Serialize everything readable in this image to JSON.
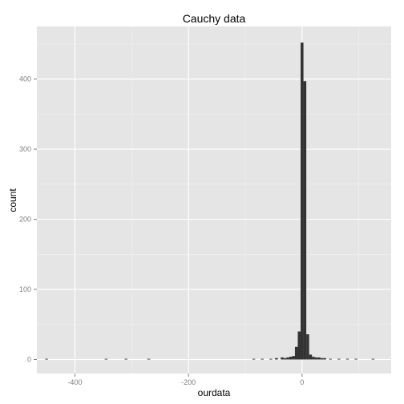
{
  "chart_data": {
    "type": "bar",
    "title": "Cauchy data",
    "xlabel": "ourdata",
    "ylabel": "count",
    "xlim": [
      -467,
      157
    ],
    "ylim": [
      -20,
      475
    ],
    "xticks": [
      -400,
      -200,
      0
    ],
    "yticks": [
      0,
      100,
      200,
      300,
      400
    ],
    "xtick_labels": [
      "-400",
      "-200",
      "0"
    ],
    "ytick_labels": [
      "0",
      "100",
      "200",
      "300",
      "400"
    ],
    "grid": true,
    "bin_width": 5,
    "bins": [
      {
        "x": -450,
        "count": 1
      },
      {
        "x": -345,
        "count": 1
      },
      {
        "x": -310,
        "count": 1
      },
      {
        "x": -270,
        "count": 1
      },
      {
        "x": -85,
        "count": 1
      },
      {
        "x": -70,
        "count": 1
      },
      {
        "x": -55,
        "count": 1
      },
      {
        "x": -45,
        "count": 2
      },
      {
        "x": -35,
        "count": 3
      },
      {
        "x": -30,
        "count": 2
      },
      {
        "x": -25,
        "count": 3
      },
      {
        "x": -20,
        "count": 4
      },
      {
        "x": -15,
        "count": 5
      },
      {
        "x": -10,
        "count": 18
      },
      {
        "x": -5,
        "count": 40
      },
      {
        "x": 0,
        "count": 452
      },
      {
        "x": 5,
        "count": 397
      },
      {
        "x": 10,
        "count": 36
      },
      {
        "x": 15,
        "count": 7
      },
      {
        "x": 20,
        "count": 4
      },
      {
        "x": 25,
        "count": 3
      },
      {
        "x": 30,
        "count": 3
      },
      {
        "x": 35,
        "count": 2
      },
      {
        "x": 40,
        "count": 2
      },
      {
        "x": 50,
        "count": 1
      },
      {
        "x": 65,
        "count": 1
      },
      {
        "x": 80,
        "count": 1
      },
      {
        "x": 95,
        "count": 1
      },
      {
        "x": 125,
        "count": 1
      }
    ]
  },
  "colors": {
    "panel_background": "#e5e5e5",
    "grid_major": "#ffffff",
    "grid_minor": "#f2f2f2",
    "bar_fill": "#333333",
    "tick_text": "#7f7f7f",
    "text": "#000000"
  }
}
